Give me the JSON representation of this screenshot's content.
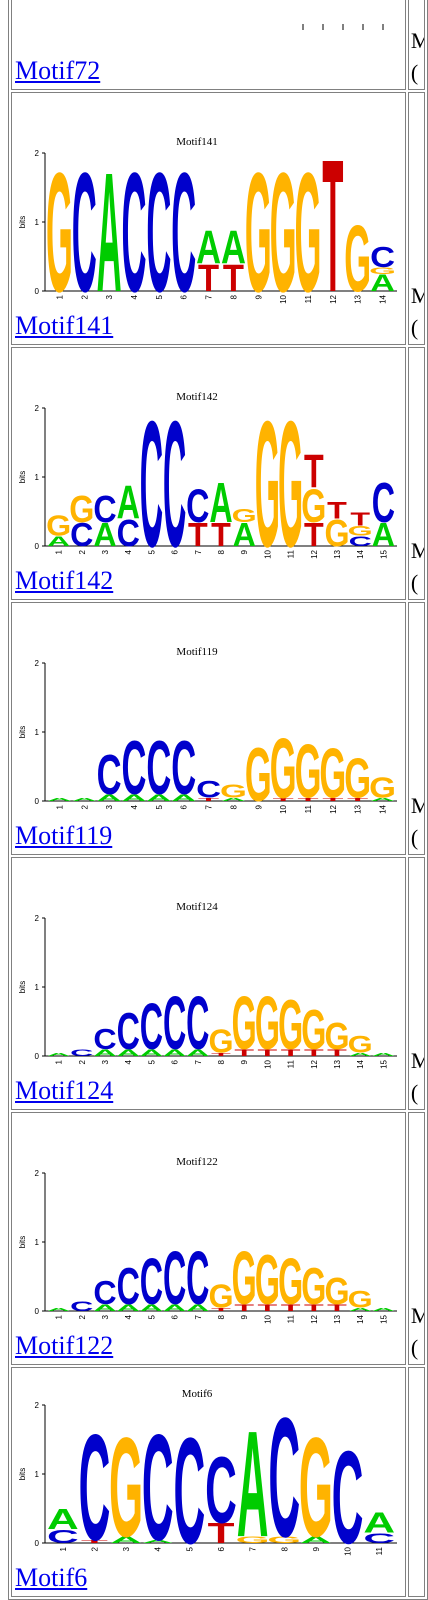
{
  "rows": [
    {
      "link": "Motif72",
      "title": "",
      "side_line1": "M",
      "side_line2": "(",
      "columns": [],
      "partial": true
    },
    {
      "link": "Motif141",
      "title": "Motif141",
      "side_line1": "M",
      "side_line2": "(",
      "columns": [
        [
          [
            "G",
            1.8
          ]
        ],
        [
          [
            "C",
            1.8
          ]
        ],
        [
          [
            "A",
            1.8
          ]
        ],
        [
          [
            "C",
            1.8
          ]
        ],
        [
          [
            "C",
            1.8
          ]
        ],
        [
          [
            "C",
            1.8
          ]
        ],
        [
          [
            "T",
            0.4
          ],
          [
            "A",
            0.5
          ]
        ],
        [
          [
            "T",
            0.4
          ],
          [
            "A",
            0.5
          ]
        ],
        [
          [
            "G",
            1.8
          ]
        ],
        [
          [
            "G",
            1.8
          ]
        ],
        [
          [
            "G",
            1.8
          ]
        ],
        [
          [
            "T",
            2.0
          ]
        ],
        [
          [
            "G",
            1.0
          ]
        ],
        [
          [
            "A",
            0.25
          ],
          [
            "G",
            0.1
          ],
          [
            "C",
            0.3
          ]
        ]
      ]
    },
    {
      "link": "Motif142",
      "title": "Motif142",
      "side_line1": "M",
      "side_line2": "(",
      "columns": [
        [
          [
            "A",
            0.15
          ],
          [
            "G",
            0.3
          ]
        ],
        [
          [
            "C",
            0.35
          ],
          [
            "G",
            0.4
          ]
        ],
        [
          [
            "A",
            0.35
          ],
          [
            "C",
            0.4
          ]
        ],
        [
          [
            "C",
            0.4
          ],
          [
            "A",
            0.5
          ]
        ],
        [
          [
            "C",
            1.9
          ]
        ],
        [
          [
            "C",
            1.9
          ]
        ],
        [
          [
            "T",
            0.35
          ],
          [
            "C",
            0.5
          ]
        ],
        [
          [
            "T",
            0.35
          ],
          [
            "A",
            0.6
          ]
        ],
        [
          [
            "A",
            0.35
          ],
          [
            "G",
            0.2
          ]
        ],
        [
          [
            "G",
            1.9
          ]
        ],
        [
          [
            "G",
            1.9
          ]
        ],
        [
          [
            "T",
            0.35
          ],
          [
            "G",
            0.5
          ],
          [
            "T",
            0.5
          ]
        ],
        [
          [
            "G",
            0.4
          ],
          [
            "T",
            0.25
          ]
        ],
        [
          [
            "C",
            0.15
          ],
          [
            "G",
            0.15
          ],
          [
            "T",
            0.2
          ]
        ],
        [
          [
            "A",
            0.35
          ],
          [
            "C",
            0.6
          ]
        ]
      ]
    },
    {
      "link": "Motif119",
      "title": "Motif119",
      "side_line1": "M",
      "side_line2": "(",
      "columns": [
        [
          [
            "A",
            0.05
          ]
        ],
        [
          [
            "A",
            0.05
          ]
        ],
        [
          [
            "A",
            0.1
          ],
          [
            "C",
            0.6
          ]
        ],
        [
          [
            "A",
            0.1
          ],
          [
            "C",
            0.8
          ]
        ],
        [
          [
            "A",
            0.1
          ],
          [
            "C",
            0.8
          ]
        ],
        [
          [
            "A",
            0.1
          ],
          [
            "C",
            0.8
          ]
        ],
        [
          [
            "T",
            0.05
          ],
          [
            "C",
            0.25
          ]
        ],
        [
          [
            "A",
            0.05
          ],
          [
            "G",
            0.2
          ]
        ],
        [
          [
            "G",
            0.8
          ]
        ],
        [
          [
            "T",
            0.05
          ],
          [
            "G",
            0.9
          ]
        ],
        [
          [
            "T",
            0.05
          ],
          [
            "G",
            0.8
          ]
        ],
        [
          [
            "T",
            0.05
          ],
          [
            "G",
            0.75
          ]
        ],
        [
          [
            "T",
            0.05
          ],
          [
            "G",
            0.6
          ]
        ],
        [
          [
            "A",
            0.05
          ],
          [
            "G",
            0.3
          ]
        ]
      ]
    },
    {
      "link": "Motif124",
      "title": "Motif124",
      "side_line1": "M",
      "side_line2": "(",
      "columns": [
        [
          [
            "A",
            0.05
          ]
        ],
        [
          [
            "C",
            0.1
          ]
        ],
        [
          [
            "A",
            0.1
          ],
          [
            "C",
            0.3
          ]
        ],
        [
          [
            "A",
            0.1
          ],
          [
            "C",
            0.55
          ]
        ],
        [
          [
            "A",
            0.1
          ],
          [
            "C",
            0.7
          ]
        ],
        [
          [
            "A",
            0.1
          ],
          [
            "C",
            0.8
          ]
        ],
        [
          [
            "A",
            0.1
          ],
          [
            "C",
            0.8
          ]
        ],
        [
          [
            "T",
            0.05
          ],
          [
            "G",
            0.35
          ]
        ],
        [
          [
            "T",
            0.1
          ],
          [
            "G",
            0.8
          ]
        ],
        [
          [
            "T",
            0.1
          ],
          [
            "G",
            0.8
          ]
        ],
        [
          [
            "T",
            0.1
          ],
          [
            "G",
            0.75
          ]
        ],
        [
          [
            "T",
            0.1
          ],
          [
            "G",
            0.6
          ]
        ],
        [
          [
            "T",
            0.1
          ],
          [
            "G",
            0.4
          ]
        ],
        [
          [
            "A",
            0.05
          ],
          [
            "G",
            0.25
          ]
        ],
        [
          [
            "A",
            0.05
          ]
        ]
      ]
    },
    {
      "link": "Motif122",
      "title": "Motif122",
      "side_line1": "M",
      "side_line2": "(",
      "columns": [
        [
          [
            "A",
            0.05
          ]
        ],
        [
          [
            "C",
            0.15
          ]
        ],
        [
          [
            "A",
            0.1
          ],
          [
            "C",
            0.35
          ]
        ],
        [
          [
            "A",
            0.1
          ],
          [
            "C",
            0.55
          ]
        ],
        [
          [
            "A",
            0.1
          ],
          [
            "C",
            0.7
          ]
        ],
        [
          [
            "A",
            0.1
          ],
          [
            "C",
            0.8
          ]
        ],
        [
          [
            "A",
            0.1
          ],
          [
            "C",
            0.8
          ]
        ],
        [
          [
            "T",
            0.05
          ],
          [
            "G",
            0.35
          ]
        ],
        [
          [
            "T",
            0.1
          ],
          [
            "G",
            0.8
          ]
        ],
        [
          [
            "T",
            0.1
          ],
          [
            "G",
            0.75
          ]
        ],
        [
          [
            "T",
            0.1
          ],
          [
            "G",
            0.7
          ]
        ],
        [
          [
            "T",
            0.1
          ],
          [
            "G",
            0.55
          ]
        ],
        [
          [
            "T",
            0.1
          ],
          [
            "G",
            0.4
          ]
        ],
        [
          [
            "A",
            0.05
          ],
          [
            "G",
            0.25
          ]
        ],
        [
          [
            "A",
            0.05
          ]
        ]
      ]
    },
    {
      "link": "Motif6",
      "title": "Motif6",
      "side_line1": "",
      "side_line2": "",
      "partial": true,
      "columns": [
        [
          [
            "C",
            0.2
          ],
          [
            "A",
            0.3
          ]
        ],
        [
          [
            "T",
            0.05
          ],
          [
            "C",
            1.6
          ]
        ],
        [
          [
            "A",
            0.1
          ],
          [
            "G",
            1.5
          ]
        ],
        [
          [
            "A",
            0.05
          ],
          [
            "C",
            1.6
          ]
        ],
        [
          [
            "C",
            1.6
          ]
        ],
        [
          [
            "T",
            0.3
          ],
          [
            "C",
            1.0
          ]
        ],
        [
          [
            "G",
            0.1
          ],
          [
            "A",
            1.6
          ]
        ],
        [
          [
            "G",
            0.1
          ],
          [
            "C",
            1.8
          ]
        ],
        [
          [
            "A",
            0.1
          ],
          [
            "G",
            1.5
          ]
        ],
        [
          [
            "C",
            1.4
          ]
        ],
        [
          [
            "C",
            0.15
          ],
          [
            "A",
            0.3
          ]
        ]
      ]
    }
  ],
  "colors": {
    "A": "#00cc00",
    "C": "#0000cc",
    "G": "#ffb300",
    "T": "#cc0000"
  },
  "axis": {
    "ylabel": "bits",
    "ticks": [
      "0",
      "1",
      "2"
    ]
  }
}
